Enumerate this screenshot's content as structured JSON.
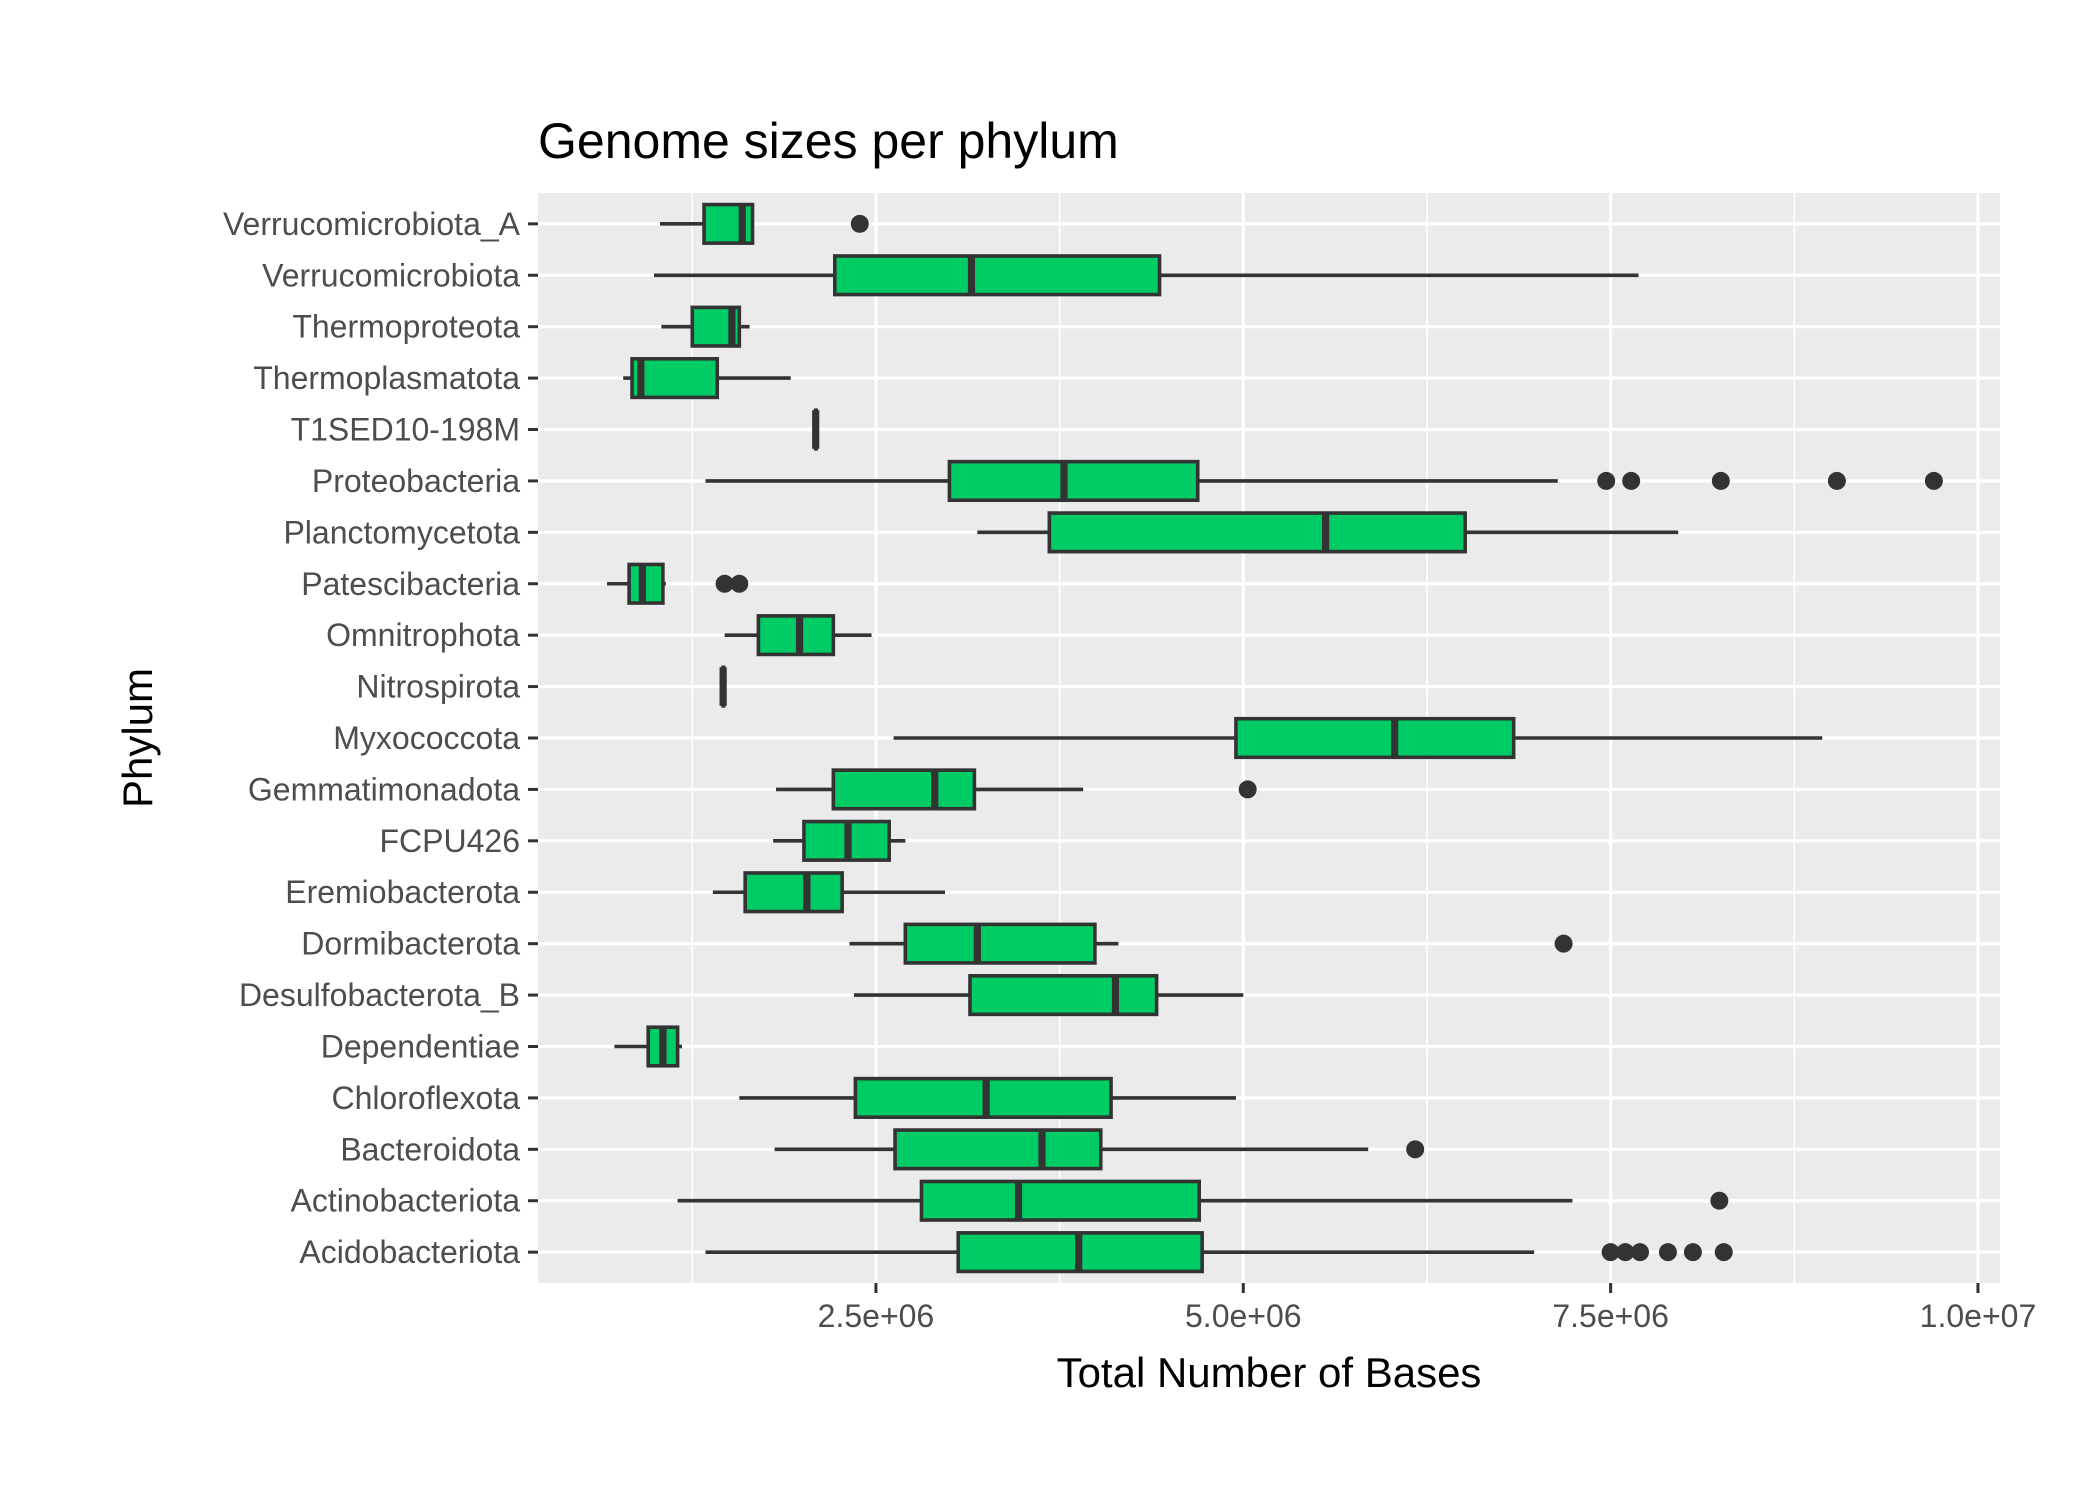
{
  "colors": {
    "panel_background": "#EBEBEB",
    "grid_major": "#FFFFFF",
    "box_fill": "#00CC66",
    "box_outline": "#333333",
    "tick_mark": "#333333"
  },
  "chart_data": {
    "type": "boxplot",
    "orientation": "horizontal",
    "title": "Genome sizes per phylum",
    "xlabel": "Total Number of Bases",
    "ylabel": "Phylum",
    "xlim": [
      200000,
      10150000
    ],
    "x_ticks": [
      2500000,
      5000000,
      7500000,
      10000000
    ],
    "x_tick_labels": [
      "2.5e+06",
      "5.0e+06",
      "7.5e+06",
      "1.0e+07"
    ],
    "grid": true,
    "legend": "none",
    "categories": [
      {
        "name": "Verrucomicrobiota_A",
        "whisker_low": 1030000,
        "q1": 1330000,
        "median": 1590000,
        "q3": 1660000,
        "whisker_high": 1660000,
        "outliers": [
          2390000
        ]
      },
      {
        "name": "Verrucomicrobiota",
        "whisker_low": 990000,
        "q1": 2220000,
        "median": 3150000,
        "q3": 4430000,
        "whisker_high": 7690000,
        "outliers": []
      },
      {
        "name": "Thermoproteota",
        "whisker_low": 1040000,
        "q1": 1250000,
        "median": 1520000,
        "q3": 1570000,
        "whisker_high": 1640000,
        "outliers": []
      },
      {
        "name": "Thermoplasmatota",
        "whisker_low": 780000,
        "q1": 840000,
        "median": 900000,
        "q3": 1420000,
        "whisker_high": 1920000,
        "outliers": []
      },
      {
        "name": "T1SED10-198M",
        "whisker_low": 2090000,
        "q1": 2090000,
        "median": 2090000,
        "q3": 2090000,
        "whisker_high": 2090000,
        "outliers": []
      },
      {
        "name": "Proteobacteria",
        "whisker_low": 1340000,
        "q1": 3000000,
        "median": 3780000,
        "q3": 4690000,
        "whisker_high": 7140000,
        "outliers": [
          7470000,
          7640000,
          8250000,
          9040000,
          9700000
        ]
      },
      {
        "name": "Planctomycetota",
        "whisker_low": 3190000,
        "q1": 3680000,
        "median": 5560000,
        "q3": 6510000,
        "whisker_high": 7960000,
        "outliers": []
      },
      {
        "name": "Patescibacteria",
        "whisker_low": 670000,
        "q1": 820000,
        "median": 910000,
        "q3": 1050000,
        "whisker_high": 1070000,
        "outliers": [
          1470000,
          1570000
        ]
      },
      {
        "name": "Omnitrophota",
        "whisker_low": 1470000,
        "q1": 1700000,
        "median": 1980000,
        "q3": 2210000,
        "whisker_high": 2470000,
        "outliers": []
      },
      {
        "name": "Nitrospirota",
        "whisker_low": 1460000,
        "q1": 1460000,
        "median": 1460000,
        "q3": 1460000,
        "whisker_high": 1460000,
        "outliers": []
      },
      {
        "name": "Myxococcota",
        "whisker_low": 2620000,
        "q1": 4950000,
        "median": 6030000,
        "q3": 6840000,
        "whisker_high": 8940000,
        "outliers": []
      },
      {
        "name": "Gemmatimonadota",
        "whisker_low": 1820000,
        "q1": 2210000,
        "median": 2900000,
        "q3": 3170000,
        "whisker_high": 3910000,
        "outliers": [
          5030000
        ]
      },
      {
        "name": "FCPU426",
        "whisker_low": 1800000,
        "q1": 2010000,
        "median": 2310000,
        "q3": 2590000,
        "whisker_high": 2700000,
        "outliers": []
      },
      {
        "name": "Eremiobacterota",
        "whisker_low": 1390000,
        "q1": 1610000,
        "median": 2030000,
        "q3": 2270000,
        "whisker_high": 2970000,
        "outliers": []
      },
      {
        "name": "Dormibacterota",
        "whisker_low": 2320000,
        "q1": 2700000,
        "median": 3190000,
        "q3": 3990000,
        "whisker_high": 4150000,
        "outliers": [
          7180000
        ]
      },
      {
        "name": "Desulfobacterota_B",
        "whisker_low": 2350000,
        "q1": 3140000,
        "median": 4130000,
        "q3": 4410000,
        "whisker_high": 5000000,
        "outliers": []
      },
      {
        "name": "Dependentiae",
        "whisker_low": 720000,
        "q1": 950000,
        "median": 1050000,
        "q3": 1150000,
        "whisker_high": 1180000,
        "outliers": []
      },
      {
        "name": "Chloroflexota",
        "whisker_low": 1570000,
        "q1": 2360000,
        "median": 3250000,
        "q3": 4100000,
        "whisker_high": 4950000,
        "outliers": []
      },
      {
        "name": "Bacteroidota",
        "whisker_low": 1810000,
        "q1": 2630000,
        "median": 3630000,
        "q3": 4030000,
        "whisker_high": 5850000,
        "outliers": [
          6170000
        ]
      },
      {
        "name": "Actinobacteriota",
        "whisker_low": 1150000,
        "q1": 2810000,
        "median": 3470000,
        "q3": 4700000,
        "whisker_high": 7240000,
        "outliers": [
          8240000
        ]
      },
      {
        "name": "Acidobacteriota",
        "whisker_low": 1340000,
        "q1": 3060000,
        "median": 3880000,
        "q3": 4720000,
        "whisker_high": 6980000,
        "outliers": [
          7500000,
          7600000,
          7700000,
          7890000,
          8060000,
          8270000
        ]
      }
    ]
  }
}
